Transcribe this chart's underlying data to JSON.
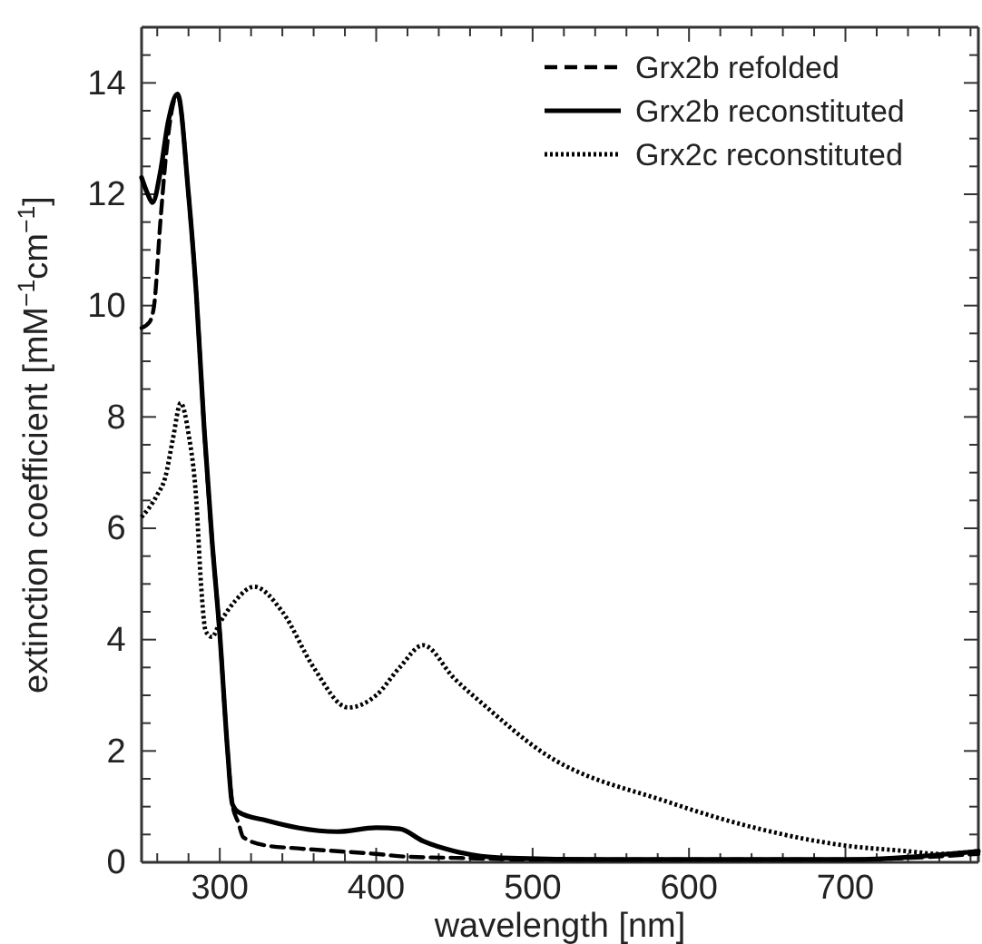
{
  "chart_data": {
    "type": "line",
    "xlabel": "wavelength [nm]",
    "ylabel": "extinction coefficient [mM$^{−1}$cm$^{−1}$]",
    "xlim": [
      250,
      785
    ],
    "ylim": [
      0,
      15
    ],
    "xticks": [
      300,
      400,
      500,
      600,
      700,
      {
        "value": 260,
        "label": null
      },
      {
        "value": 280,
        "label": null
      },
      {
        "value": 320,
        "label": null
      },
      {
        "value": 340,
        "label": null
      },
      {
        "value": 360,
        "label": null
      },
      {
        "value": 380,
        "label": null
      },
      {
        "value": 420,
        "label": null
      },
      {
        "value": 440,
        "label": null
      },
      {
        "value": 460,
        "label": null
      },
      {
        "value": 480,
        "label": null
      },
      {
        "value": 520,
        "label": null
      },
      {
        "value": 540,
        "label": null
      },
      {
        "value": 560,
        "label": null
      },
      {
        "value": 580,
        "label": null
      },
      {
        "value": 620,
        "label": null
      },
      {
        "value": 640,
        "label": null
      },
      {
        "value": 660,
        "label": null
      },
      {
        "value": 680,
        "label": null
      },
      {
        "value": 720,
        "label": null
      },
      {
        "value": 740,
        "label": null
      },
      {
        "value": 760,
        "label": null
      },
      {
        "value": 780,
        "label": null
      }
    ],
    "yticks": [
      0,
      2,
      4,
      6,
      8,
      10,
      12,
      14,
      {
        "value": 1,
        "label": null
      },
      {
        "value": 3,
        "label": null
      },
      {
        "value": 5,
        "label": null
      },
      {
        "value": 7,
        "label": null
      },
      {
        "value": 9,
        "label": null
      },
      {
        "value": 11,
        "label": null
      },
      {
        "value": 13,
        "label": null
      },
      {
        "value": 0.5,
        "label": null
      },
      {
        "value": 1.5,
        "label": null
      },
      {
        "value": 2.5,
        "label": null
      },
      {
        "value": 3.5,
        "label": null
      },
      {
        "value": 4.5,
        "label": null
      },
      {
        "value": 5.5,
        "label": null
      },
      {
        "value": 6.5,
        "label": null
      },
      {
        "value": 7.5,
        "label": null
      },
      {
        "value": 8.5,
        "label": null
      },
      {
        "value": 9.5,
        "label": null
      },
      {
        "value": 10.5,
        "label": null
      },
      {
        "value": 11.5,
        "label": null
      },
      {
        "value": 12.5,
        "label": null
      },
      {
        "value": 13.5,
        "label": null
      },
      {
        "value": 14.5,
        "label": null
      }
    ],
    "grid": false,
    "legend": "top right",
    "marker": "none",
    "series": [
      {
        "name": "Grx2b refolded",
        "color": "#000000",
        "line_style": "dashed",
        "x": [
          250,
          255,
          258,
          262,
          266,
          270,
          273,
          280,
          285,
          290,
          295,
          300,
          305,
          308,
          312,
          315,
          330,
          350,
          400,
          420,
          450,
          500,
          600,
          700,
          785
        ],
        "values": [
          9.6,
          9.7,
          10.0,
          11.5,
          12.8,
          13.6,
          13.8,
          12.0,
          10.2,
          7.8,
          5.8,
          4.1,
          2.0,
          1.05,
          0.7,
          0.45,
          0.3,
          0.25,
          0.15,
          0.1,
          0.08,
          0.05,
          0.05,
          0.05,
          0.15
        ]
      },
      {
        "name": "Grx2b reconstituted",
        "color": "#000000",
        "line_style": "solid",
        "x": [
          250,
          254,
          257,
          262,
          267,
          273,
          280,
          285,
          290,
          295,
          300,
          305,
          308,
          312,
          330,
          350,
          375,
          400,
          415,
          430,
          450,
          480,
          550,
          700,
          785
        ],
        "values": [
          12.3,
          12.0,
          11.85,
          12.4,
          13.3,
          13.8,
          12.0,
          10.2,
          7.8,
          5.8,
          4.1,
          2.0,
          1.05,
          0.9,
          0.75,
          0.62,
          0.55,
          0.62,
          0.6,
          0.38,
          0.2,
          0.08,
          0.05,
          0.05,
          0.2
        ]
      },
      {
        "name": "Grx2c reconstituted",
        "color": "#000000",
        "line_style": "dotted",
        "x": [
          250,
          260,
          265,
          270,
          275,
          280,
          285,
          288,
          291,
          295,
          300,
          310,
          322,
          340,
          360,
          382,
          400,
          415,
          430,
          450,
          470,
          505,
          587,
          645,
          700,
          740,
          760,
          785
        ],
        "values": [
          6.2,
          6.6,
          6.9,
          7.6,
          8.25,
          7.7,
          6.5,
          5.0,
          4.15,
          4.05,
          4.3,
          4.7,
          4.95,
          4.5,
          3.5,
          2.78,
          3.0,
          3.5,
          3.9,
          3.3,
          2.8,
          2.0,
          1.08,
          0.6,
          0.3,
          0.2,
          0.15,
          0.2
        ]
      }
    ]
  }
}
